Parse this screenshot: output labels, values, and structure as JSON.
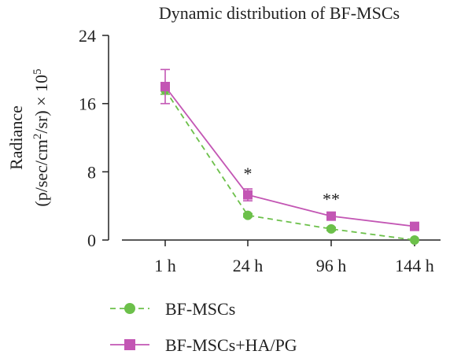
{
  "chart_data": {
    "type": "line",
    "title": "Dynamic distribution of BF-MSCs",
    "ylabel_line1": "Radiance",
    "ylabel_line2_pre": "(p/sec/cm",
    "ylabel_line2_sup": "2",
    "ylabel_line2_mid": "/sr) × 10",
    "ylabel_line2_exp": "5",
    "categories": [
      "1 h",
      "24 h",
      "96 h",
      "144 h"
    ],
    "ylim": [
      0,
      24
    ],
    "yticks": [
      "0",
      "8",
      "16",
      "24"
    ],
    "grid": false,
    "legend_placement": "bottom-left",
    "series": [
      {
        "name": "BF-MSCs",
        "values": [
          17.6,
          2.9,
          1.3,
          0.0
        ],
        "errors": [
          0.5,
          0.2,
          0.2,
          0.0
        ],
        "color": "#6cc04a",
        "line_style": "dashed",
        "marker": "circle"
      },
      {
        "name": "BF-MSCs+HA/PG",
        "values": [
          18.0,
          5.3,
          2.8,
          1.6
        ],
        "errors": [
          2.0,
          0.7,
          0.2,
          0.15
        ],
        "color": "#c356b4",
        "line_style": "solid",
        "marker": "square"
      }
    ],
    "annotations": [
      {
        "category_index": 1,
        "text": "*"
      },
      {
        "category_index": 2,
        "text": "**"
      }
    ]
  }
}
